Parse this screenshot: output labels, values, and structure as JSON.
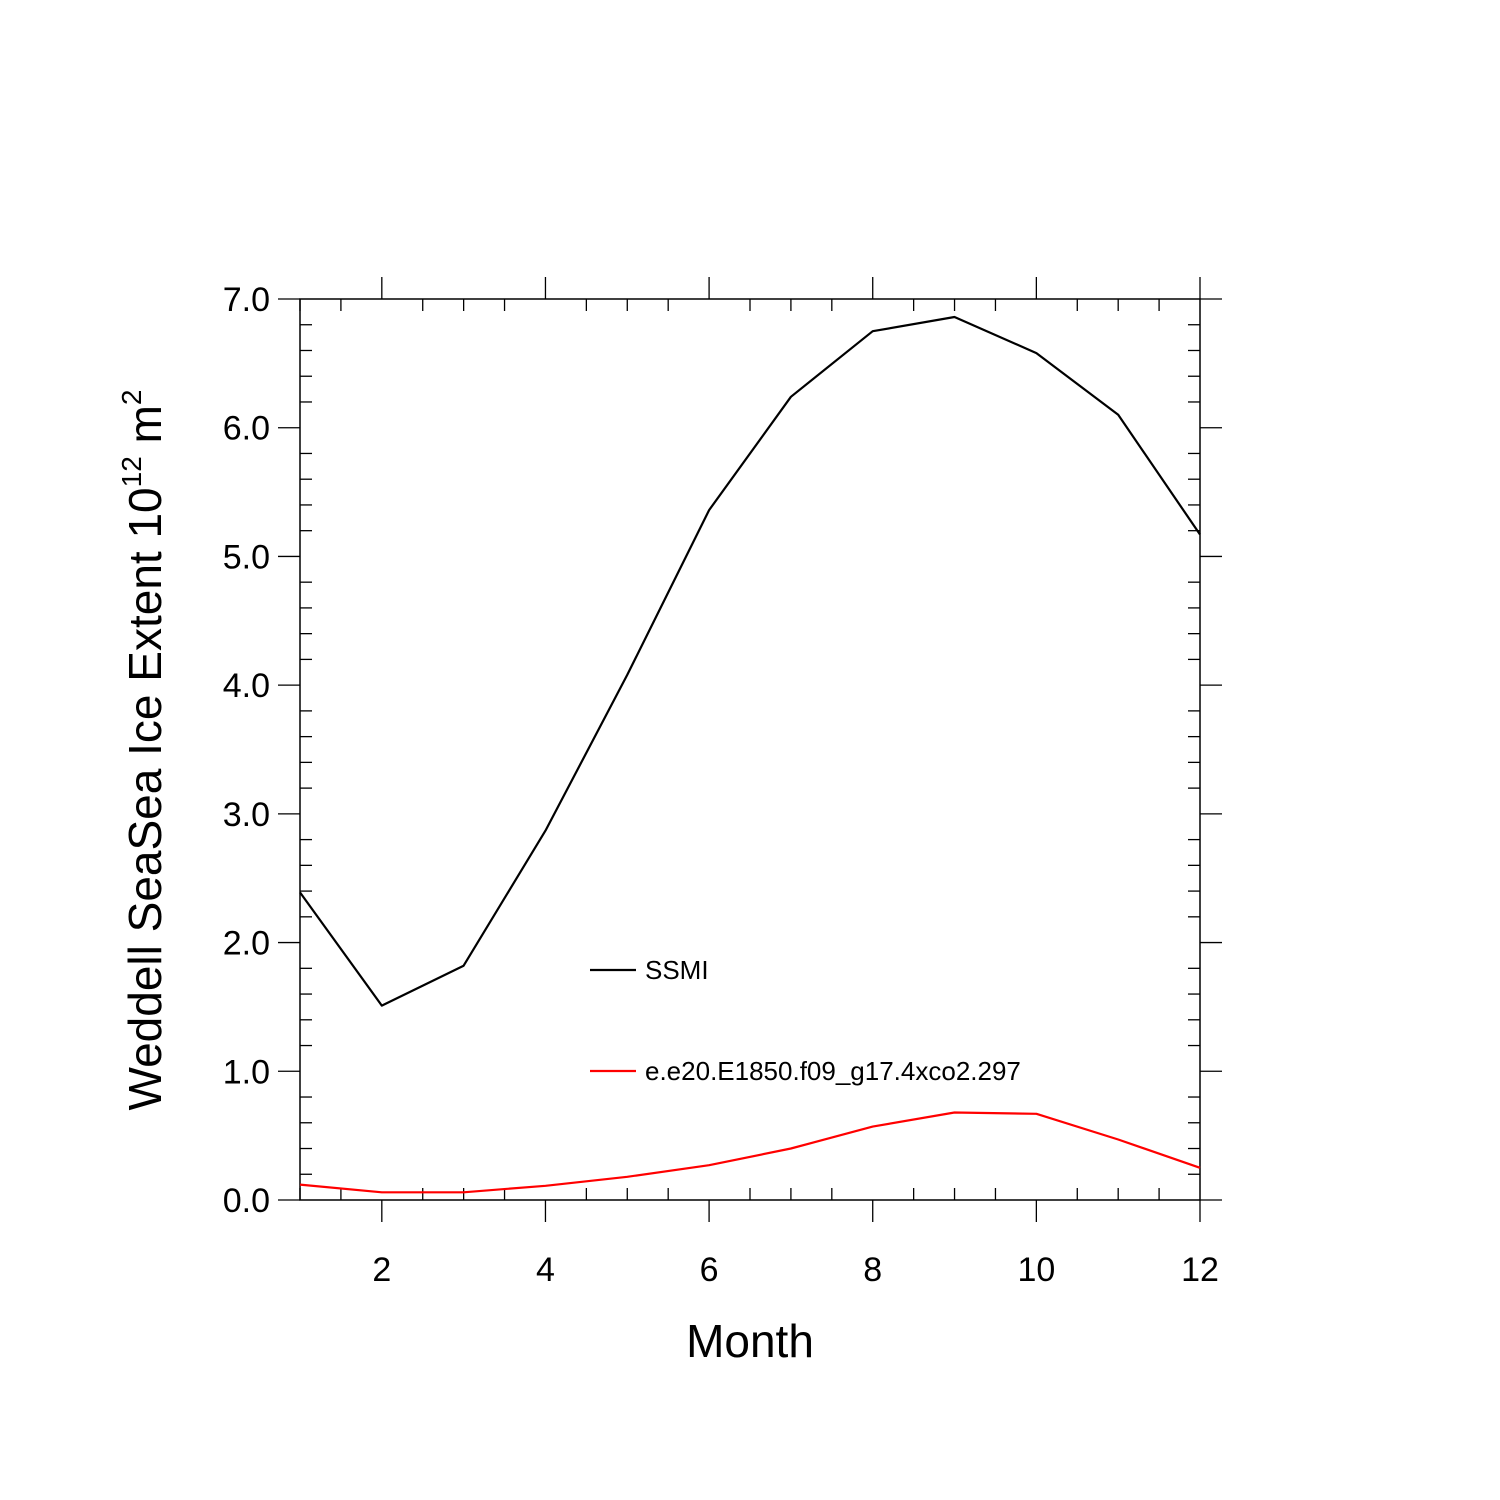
{
  "chart_data": {
    "type": "line",
    "title": "",
    "xlabel": "Month",
    "ylabel": {
      "prefix": "Weddell SeaSea Ice Extent 10",
      "exponent": "12",
      "unit": " m",
      "unit_exponent": "2"
    },
    "xlim": [
      1,
      12
    ],
    "ylim": [
      0,
      7
    ],
    "xticks": [
      2,
      4,
      6,
      8,
      10,
      12
    ],
    "xtick_labels": [
      "2",
      "4",
      "6",
      "8",
      "10",
      "12"
    ],
    "yticks": [
      0,
      1,
      2,
      3,
      4,
      5,
      6,
      7
    ],
    "ytick_labels": [
      "0.0",
      "1.0",
      "2.0",
      "3.0",
      "4.0",
      "5.0",
      "6.0",
      "7.0"
    ],
    "grid": false,
    "legend_position": "center",
    "x": [
      1,
      2,
      3,
      4,
      5,
      6,
      7,
      8,
      9,
      10,
      11,
      12
    ],
    "series": [
      {
        "name": "SSMI",
        "color": "#000000",
        "values": [
          2.39,
          1.51,
          1.82,
          2.87,
          4.08,
          5.36,
          6.24,
          6.75,
          6.86,
          6.58,
          6.1,
          5.17
        ]
      },
      {
        "name": "e.e20.E1850.f09_g17.4xco2.297",
        "color": "#ff0000",
        "values": [
          0.12,
          0.06,
          0.06,
          0.11,
          0.18,
          0.27,
          0.4,
          0.57,
          0.68,
          0.67,
          0.47,
          0.25
        ]
      }
    ]
  }
}
